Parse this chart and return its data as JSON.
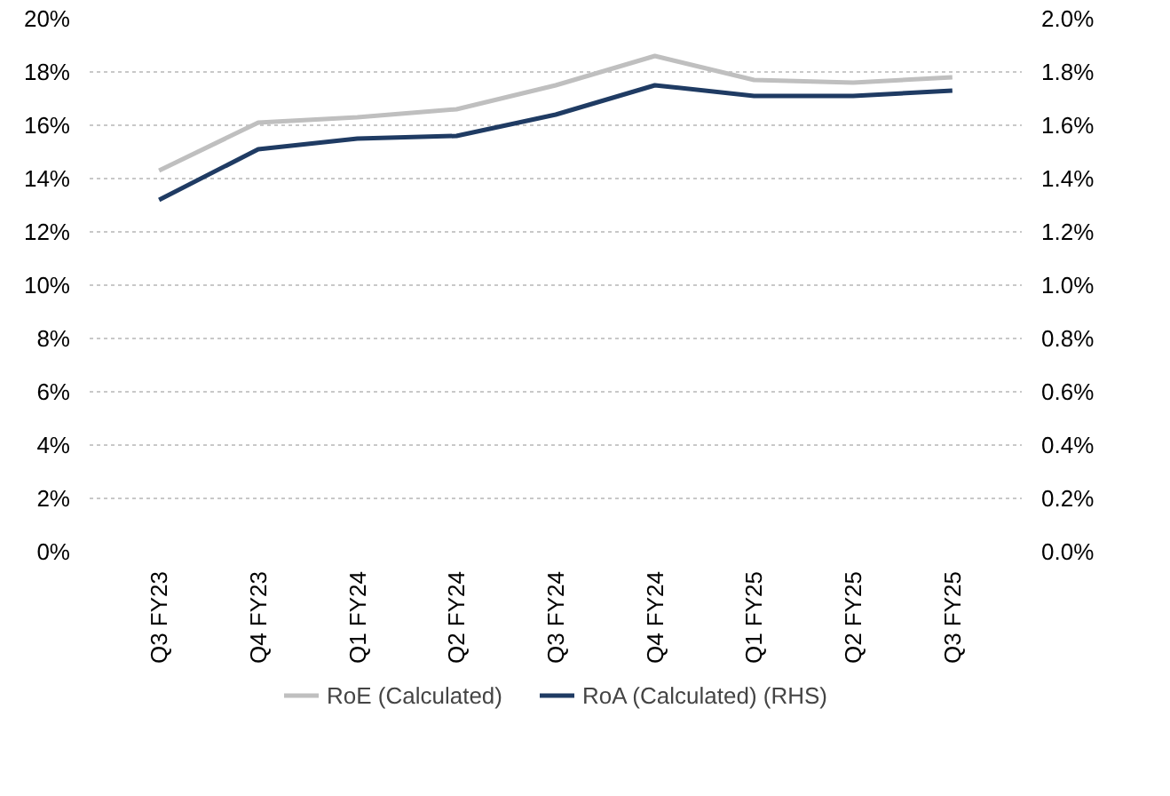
{
  "chart_data": {
    "type": "line",
    "categories": [
      "Q3 FY23",
      "Q4 FY23",
      "Q1 FY24",
      "Q2 FY24",
      "Q3 FY24",
      "Q4 FY24",
      "Q1 FY25",
      "Q2 FY25",
      "Q3 FY25"
    ],
    "series": [
      {
        "name": "RoE (Calculated)",
        "color": "#bfbfbf",
        "values": [
          14.3,
          16.1,
          16.3,
          16.6,
          17.5,
          18.6,
          17.7,
          17.6,
          17.8
        ]
      },
      {
        "name": "RoA (Calculated) (RHS)",
        "color": "#1f3b63",
        "axis": "y2",
        "values": [
          1.32,
          1.51,
          1.55,
          1.56,
          1.64,
          1.75,
          1.71,
          1.71,
          1.73
        ]
      }
    ],
    "ylim": [
      0,
      20
    ],
    "yticks": [
      {
        "value": 0,
        "label": "0%"
      },
      {
        "value": 2,
        "label": "2%"
      },
      {
        "value": 4,
        "label": "4%"
      },
      {
        "value": 6,
        "label": "6%"
      },
      {
        "value": 8,
        "label": "8%"
      },
      {
        "value": 10,
        "label": "10%"
      },
      {
        "value": 12,
        "label": "12%"
      },
      {
        "value": 14,
        "label": "14%"
      },
      {
        "value": 16,
        "label": "16%"
      },
      {
        "value": 18,
        "label": "18%"
      },
      {
        "value": 20,
        "label": "20%"
      }
    ],
    "y2lim": [
      0,
      2
    ],
    "y2ticks": [
      {
        "value": 0,
        "label": "0.0%"
      },
      {
        "value": 0.2,
        "label": "0.2%"
      },
      {
        "value": 0.4,
        "label": "0.4%"
      },
      {
        "value": 0.6,
        "label": "0.6%"
      },
      {
        "value": 0.8,
        "label": "0.8%"
      },
      {
        "value": 1.0,
        "label": "1.0%"
      },
      {
        "value": 1.2,
        "label": "1.2%"
      },
      {
        "value": 1.4,
        "label": "1.4%"
      },
      {
        "value": 1.6,
        "label": "1.6%"
      },
      {
        "value": 1.8,
        "label": "1.8%"
      },
      {
        "value": 2.0,
        "label": "2.0%"
      }
    ],
    "grid": "y",
    "legend": "bottom",
    "marker": "none",
    "line_style": "solid"
  }
}
